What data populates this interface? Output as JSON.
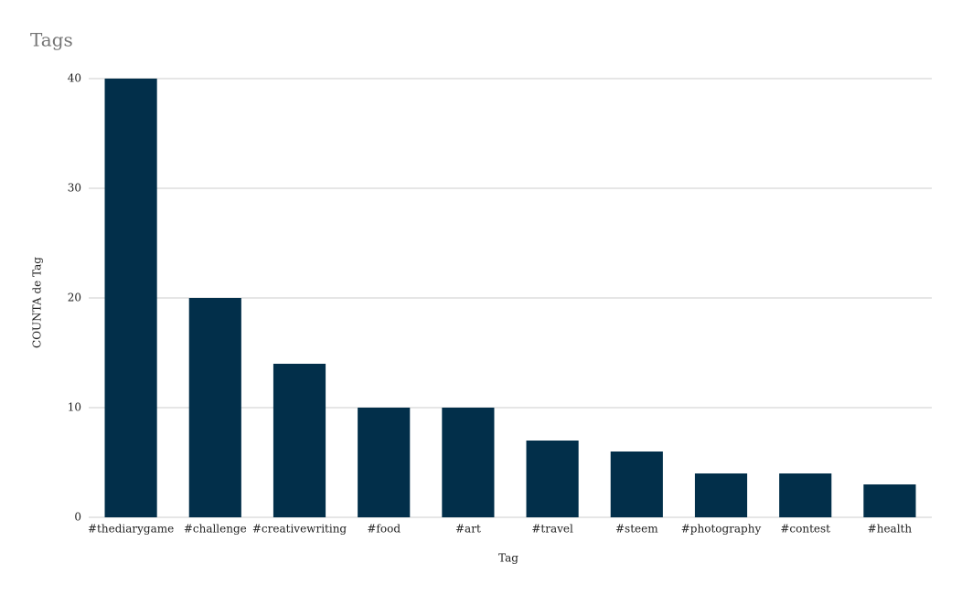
{
  "chart_data": {
    "type": "bar",
    "title": "Tags",
    "x_label": "Tag",
    "y_label": "COUNTA de Tag",
    "categories": [
      "#thediarygame",
      "#challenge",
      "#creativewriting",
      "#food",
      "#art",
      "#travel",
      "#steem",
      "#photography",
      "#contest",
      "#health"
    ],
    "values": [
      40,
      20,
      14,
      10,
      10,
      7,
      6,
      4,
      4,
      3
    ],
    "color": "#022f4a",
    "ylim": [
      0,
      40
    ],
    "yticks": [
      0,
      10,
      20,
      30,
      40
    ],
    "grid": true
  }
}
